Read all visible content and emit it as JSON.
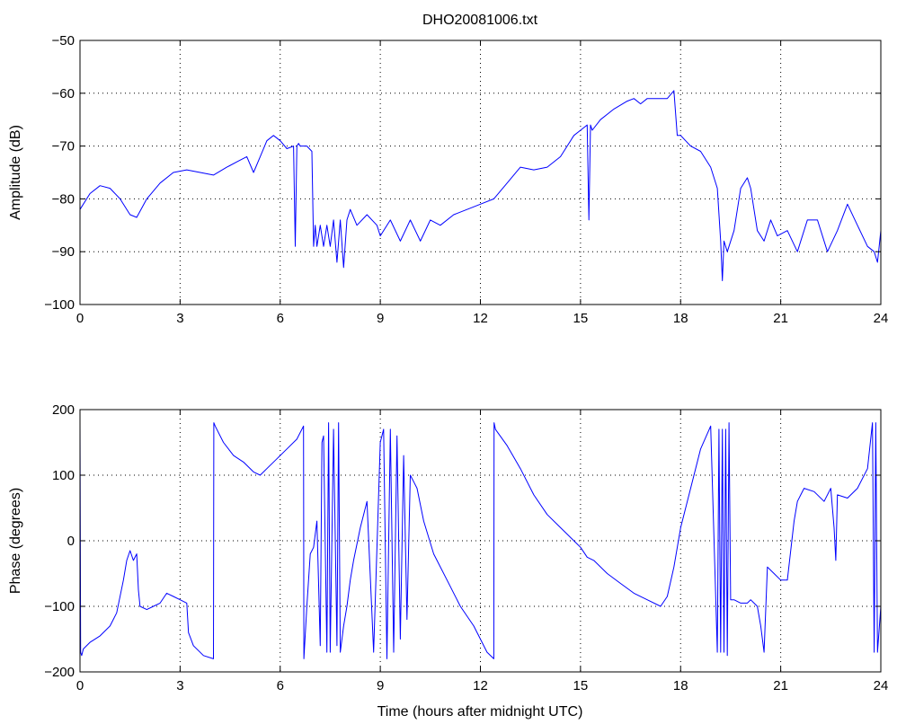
{
  "figure": {
    "title": "DHO20081006.txt",
    "xlabel": "Time (hours after midnight UTC)"
  },
  "colors": {
    "line": "#0000ff",
    "axis": "#000000"
  },
  "chart_data": [
    {
      "type": "line",
      "title": "DHO20081006.txt",
      "xlabel": "",
      "ylabel": "Amplitude (dB)",
      "xlim": [
        0,
        24
      ],
      "ylim": [
        -100,
        -50
      ],
      "xticks": [
        0,
        3,
        6,
        9,
        12,
        15,
        18,
        21,
        24
      ],
      "yticks": [
        -100,
        -90,
        -80,
        -70,
        -60,
        -50
      ],
      "grid": true,
      "series": [
        {
          "x": [
            0,
            0.3,
            0.6,
            0.9,
            1.2,
            1.5,
            1.7,
            2.0,
            2.4,
            2.8,
            3.2,
            3.6,
            4.0,
            4.4,
            4.7,
            5.0,
            5.2,
            5.4,
            5.6,
            5.8,
            6.0,
            6.2,
            6.4,
            6.45,
            6.5,
            6.55,
            6.6,
            6.8,
            6.95,
            7.0,
            7.05,
            7.1,
            7.2,
            7.3,
            7.4,
            7.5,
            7.6,
            7.7,
            7.8,
            7.9,
            8.0,
            8.1,
            8.3,
            8.6,
            8.9,
            9.0,
            9.3,
            9.6,
            9.9,
            10.2,
            10.5,
            10.8,
            11.2,
            11.6,
            12.0,
            12.4,
            12.8,
            13.2,
            13.6,
            14.0,
            14.4,
            14.8,
            15.0,
            15.2,
            15.25,
            15.3,
            15.35,
            15.6,
            16.0,
            16.4,
            16.6,
            16.8,
            17.0,
            17.3,
            17.6,
            17.8,
            17.9,
            18.0,
            18.3,
            18.6,
            18.9,
            19.1,
            19.2,
            19.25,
            19.3,
            19.4,
            19.6,
            19.8,
            20.0,
            20.1,
            20.3,
            20.5,
            20.7,
            20.9,
            21.2,
            21.5,
            21.8,
            22.1,
            22.4,
            22.7,
            23.0,
            23.3,
            23.6,
            23.8,
            23.9,
            24.0
          ],
          "y": [
            -82,
            -79,
            -77.5,
            -78,
            -80,
            -83,
            -83.5,
            -80,
            -77,
            -75,
            -74.5,
            -75,
            -75.5,
            -74,
            -73,
            -72,
            -75,
            -72,
            -69,
            -68,
            -69,
            -70.5,
            -70,
            -89,
            -70,
            -69.5,
            -70,
            -70,
            -71,
            -89,
            -85,
            -89,
            -85,
            -89,
            -85,
            -89,
            -84,
            -92,
            -84,
            -93,
            -84,
            -82,
            -85,
            -83,
            -85,
            -87,
            -84,
            -88,
            -84,
            -88,
            -84,
            -85,
            -83,
            -82,
            -81,
            -80,
            -77,
            -74,
            -74.5,
            -74,
            -72,
            -68,
            -67,
            -66,
            -84,
            -66,
            -67,
            -65,
            -63,
            -61.5,
            -61,
            -62,
            -61,
            -61,
            -61,
            -59.5,
            -68,
            -68,
            -70,
            -71,
            -74,
            -78,
            -88,
            -95.5,
            -88,
            -90,
            -86,
            -78,
            -76,
            -78,
            -86,
            -88,
            -84,
            -87,
            -86,
            -90,
            -84,
            -84,
            -90,
            -86,
            -81,
            -85,
            -89,
            -90,
            -92,
            -86
          ]
        }
      ]
    },
    {
      "type": "line",
      "title": "",
      "xlabel": "Time (hours after midnight UTC)",
      "ylabel": "Phase (degrees)",
      "xlim": [
        0,
        24
      ],
      "ylim": [
        -200,
        200
      ],
      "xticks": [
        0,
        3,
        6,
        9,
        12,
        15,
        18,
        21,
        24
      ],
      "yticks": [
        -200,
        -100,
        0,
        100,
        200
      ],
      "grid": true,
      "series": [
        {
          "x": [
            0,
            0.02,
            0.05,
            0.1,
            0.3,
            0.6,
            0.9,
            1.1,
            1.3,
            1.4,
            1.5,
            1.6,
            1.7,
            1.75,
            1.8,
            2.0,
            2.2,
            2.4,
            2.6,
            2.8,
            3.0,
            3.2,
            3.25,
            3.4,
            3.7,
            4.0,
            4.01,
            4.05,
            4.3,
            4.6,
            4.9,
            5.2,
            5.4,
            5.6,
            5.9,
            6.2,
            6.5,
            6.7,
            6.71,
            6.8,
            6.9,
            7.0,
            7.1,
            7.2,
            7.25,
            7.3,
            7.4,
            7.45,
            7.5,
            7.6,
            7.7,
            7.75,
            7.8,
            7.9,
            8.0,
            8.1,
            8.2,
            8.4,
            8.6,
            8.8,
            9.0,
            9.1,
            9.2,
            9.3,
            9.4,
            9.5,
            9.6,
            9.7,
            9.8,
            9.9,
            10.0,
            10.1,
            10.3,
            10.6,
            11.0,
            11.4,
            11.8,
            12.2,
            12.4,
            12.41,
            12.45,
            12.8,
            13.2,
            13.6,
            14.0,
            14.4,
            14.8,
            15.0,
            15.2,
            15.4,
            15.8,
            16.2,
            16.6,
            17.0,
            17.4,
            17.6,
            17.8,
            18.0,
            18.3,
            18.6,
            18.9,
            19.1,
            19.15,
            19.2,
            19.25,
            19.3,
            19.35,
            19.4,
            19.45,
            19.5,
            19.6,
            19.8,
            20.0,
            20.1,
            20.3,
            20.4,
            20.5,
            20.6,
            20.8,
            21.0,
            21.2,
            21.4,
            21.5,
            21.7,
            22.0,
            22.3,
            22.5,
            22.6,
            22.65,
            22.7,
            23.0,
            23.3,
            23.6,
            23.75,
            23.8,
            23.85,
            23.9,
            24.0
          ],
          "y": [
            180,
            -170,
            -175,
            -165,
            -155,
            -145,
            -130,
            -110,
            -60,
            -30,
            -15,
            -30,
            -20,
            -75,
            -100,
            -105,
            -100,
            -95,
            -80,
            -85,
            -90,
            -95,
            -140,
            -160,
            -175,
            -180,
            180,
            175,
            150,
            130,
            120,
            105,
            100,
            110,
            125,
            140,
            155,
            175,
            -180,
            -100,
            -20,
            -10,
            30,
            -160,
            150,
            160,
            -170,
            180,
            -170,
            170,
            -160,
            180,
            -170,
            -130,
            -100,
            -60,
            -30,
            20,
            60,
            -170,
            150,
            170,
            -180,
            170,
            -170,
            160,
            -150,
            130,
            -120,
            100,
            90,
            80,
            30,
            -20,
            -60,
            -100,
            -130,
            -170,
            -180,
            180,
            170,
            145,
            110,
            70,
            40,
            20,
            0,
            -10,
            -25,
            -30,
            -50,
            -65,
            -80,
            -90,
            -100,
            -85,
            -40,
            20,
            80,
            140,
            175,
            -170,
            170,
            -170,
            170,
            -170,
            170,
            -175,
            180,
            -90,
            -90,
            -95,
            -95,
            -90,
            -100,
            -130,
            -170,
            -40,
            -50,
            -60,
            -60,
            30,
            60,
            80,
            75,
            60,
            80,
            20,
            -30,
            70,
            65,
            80,
            110,
            180,
            -170,
            180,
            -170,
            -100
          ]
        }
      ]
    }
  ]
}
